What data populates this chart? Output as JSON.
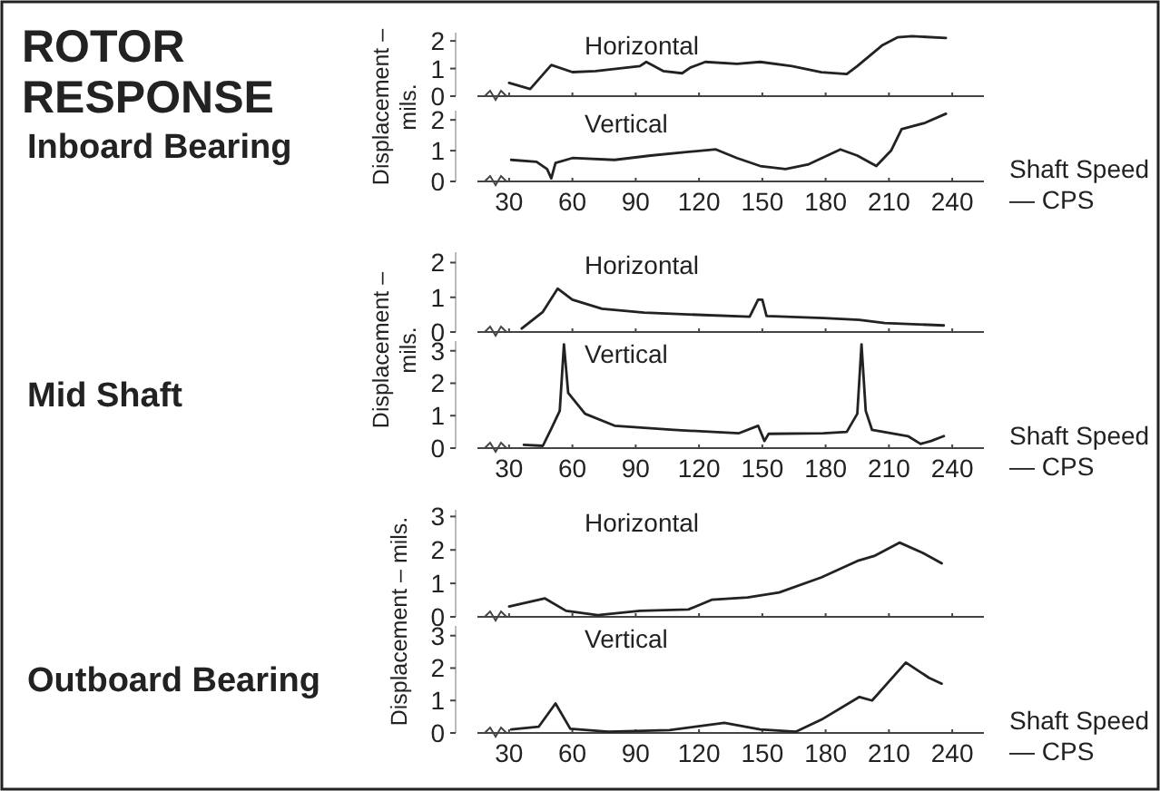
{
  "chart_data": [
    {
      "type": "other",
      "title": "ROTOR RESPONSE",
      "annotations": [
        "Inboard Bearing",
        "Mid Shaft",
        "Outboard Bearing"
      ]
    },
    {
      "type": "line",
      "ylabel": "Displacement – mils.",
      "xlim": [
        15,
        255
      ],
      "xticks": [
        {
          "value": 30,
          "label": null
        },
        {
          "value": 60,
          "label": null
        },
        {
          "value": 90,
          "label": null
        },
        {
          "value": 120,
          "label": null
        },
        {
          "value": 150,
          "label": null
        },
        {
          "value": 180,
          "label": null
        },
        {
          "value": 210,
          "label": null
        },
        {
          "value": 240,
          "label": null
        }
      ],
      "ylim": [
        0,
        2.3
      ],
      "yticks": [
        0,
        1,
        2
      ],
      "tick_labels": "y",
      "series": [
        {
          "name": "Horizontal",
          "color": "#222222",
          "x": [
            30,
            40,
            50,
            60,
            71,
            92,
            95,
            103,
            112,
            116,
            123,
            138,
            149,
            164,
            178,
            190,
            195,
            207,
            214,
            221,
            237
          ],
          "values": [
            0.48,
            0.26,
            1.13,
            0.87,
            0.91,
            1.09,
            1.24,
            0.91,
            0.83,
            1.04,
            1.24,
            1.17,
            1.24,
            1.09,
            0.87,
            0.8,
            1.09,
            1.85,
            2.13,
            2.17,
            2.11
          ]
        }
      ]
    },
    {
      "type": "line",
      "xlabel": "Shaft Speed — CPS",
      "xlim": [
        15,
        255
      ],
      "xticks": [
        30,
        60,
        90,
        120,
        150,
        180,
        210,
        240
      ],
      "ylim": [
        0,
        2.3
      ],
      "yticks": [
        0,
        1,
        2
      ],
      "series": [
        {
          "name": "Vertical",
          "color": "#222222",
          "x": [
            31,
            43,
            48,
            50,
            52,
            60,
            80,
            97,
            115,
            128,
            138,
            149,
            161,
            172,
            187,
            195,
            204,
            211,
            216,
            227,
            237
          ],
          "values": [
            0.7,
            0.64,
            0.4,
            0.1,
            0.6,
            0.76,
            0.7,
            0.84,
            0.96,
            1.04,
            0.76,
            0.5,
            0.4,
            0.56,
            1.04,
            0.84,
            0.5,
            1.0,
            1.7,
            1.9,
            2.2
          ]
        }
      ]
    },
    {
      "type": "line",
      "ylabel": "Displacement – mils.",
      "xlim": [
        15,
        255
      ],
      "xticks": [
        {
          "value": 30,
          "label": null
        },
        {
          "value": 60,
          "label": null
        },
        {
          "value": 90,
          "label": null
        },
        {
          "value": 120,
          "label": null
        },
        {
          "value": 150,
          "label": null
        },
        {
          "value": 180,
          "label": null
        },
        {
          "value": 210,
          "label": null
        },
        {
          "value": 240,
          "label": null
        }
      ],
      "ylim": [
        0,
        2.3
      ],
      "yticks": [
        0,
        1,
        2
      ],
      "tick_labels": "y",
      "series": [
        {
          "name": "Horizontal",
          "color": "#222222",
          "x": [
            36,
            46,
            53,
            60,
            74,
            94,
            122,
            144,
            148,
            150,
            152,
            179,
            196,
            208,
            236
          ],
          "values": [
            0.1,
            0.58,
            1.25,
            0.93,
            0.67,
            0.56,
            0.49,
            0.44,
            0.93,
            0.93,
            0.46,
            0.4,
            0.35,
            0.26,
            0.19
          ]
        }
      ]
    },
    {
      "type": "line",
      "xlabel": "Shaft Speed — CPS",
      "xlim": [
        15,
        255
      ],
      "xticks": [
        30,
        60,
        90,
        120,
        150,
        180,
        210,
        240
      ],
      "ylim": [
        0,
        3.3
      ],
      "yticks": [
        0,
        1,
        2,
        3
      ],
      "series": [
        {
          "name": "Vertical",
          "color": "#222222",
          "x": [
            37,
            46,
            50,
            54,
            56,
            58,
            66,
            80,
            108,
            139,
            148,
            151,
            153,
            179,
            190,
            195,
            197,
            199,
            202,
            219,
            225,
            230,
            236
          ],
          "values": [
            0.1,
            0.07,
            0.6,
            1.15,
            3.2,
            1.7,
            1.06,
            0.69,
            0.56,
            0.46,
            0.69,
            0.22,
            0.44,
            0.46,
            0.5,
            1.06,
            3.2,
            1.15,
            0.56,
            0.37,
            0.13,
            0.22,
            0.37
          ]
        }
      ]
    },
    {
      "type": "line",
      "ylabel": "Displacement – mils.",
      "xlim": [
        15,
        255
      ],
      "xticks": [
        {
          "value": 30,
          "label": null
        },
        {
          "value": 60,
          "label": null
        },
        {
          "value": 90,
          "label": null
        },
        {
          "value": 120,
          "label": null
        },
        {
          "value": 150,
          "label": null
        },
        {
          "value": 180,
          "label": null
        },
        {
          "value": 210,
          "label": null
        },
        {
          "value": 240,
          "label": null
        }
      ],
      "ylim": [
        0,
        3.2
      ],
      "yticks": [
        0,
        1,
        2,
        3
      ],
      "tick_labels": "y",
      "series": [
        {
          "name": "Horizontal",
          "color": "#222222",
          "x": [
            30,
            47,
            57,
            72,
            92,
            115,
            126,
            143,
            158,
            178,
            195,
            203,
            215,
            226,
            235
          ],
          "values": [
            0.31,
            0.55,
            0.18,
            0.05,
            0.18,
            0.22,
            0.51,
            0.58,
            0.73,
            1.18,
            1.67,
            1.82,
            2.22,
            1.91,
            1.6
          ]
        }
      ]
    },
    {
      "type": "line",
      "xlabel": "Shaft Speed — CPS",
      "xlim": [
        15,
        255
      ],
      "xticks": [
        30,
        60,
        90,
        120,
        150,
        180,
        210,
        240
      ],
      "ylim": [
        0,
        3.3
      ],
      "yticks": [
        0,
        1,
        2,
        3
      ],
      "series": [
        {
          "name": "Vertical",
          "color": "#222222",
          "x": [
            31,
            44,
            52,
            59,
            77,
            106,
            132,
            149,
            166,
            178,
            196,
            202,
            218,
            229,
            235
          ],
          "values": [
            0.11,
            0.19,
            0.91,
            0.13,
            0.04,
            0.09,
            0.31,
            0.11,
            0.04,
            0.41,
            1.11,
            1.0,
            2.17,
            1.7,
            1.52
          ]
        }
      ]
    }
  ]
}
